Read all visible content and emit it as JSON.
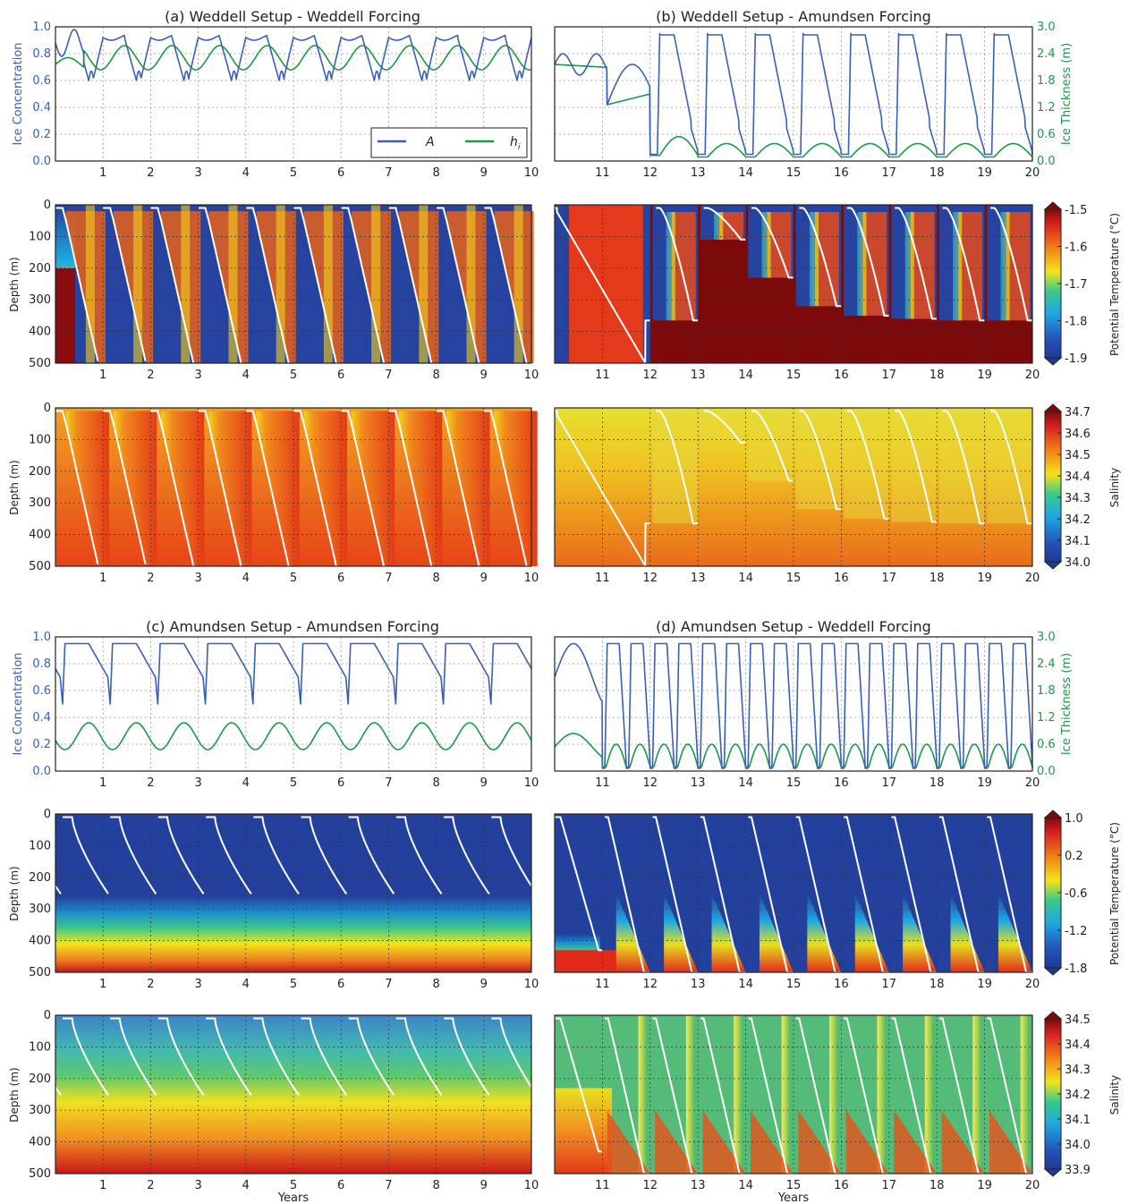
{
  "figure": {
    "xlabel": "Years"
  },
  "colorbars": {
    "temp_weddell": {
      "label": "Potential Temperature (°C)",
      "ticks": [
        "-1.9",
        "-1.8",
        "-1.7",
        "-1.6",
        "-1.5"
      ]
    },
    "sal_weddell": {
      "label": "Salinity",
      "ticks": [
        "34.0",
        "34.1",
        "34.2",
        "34.3",
        "34.4",
        "34.5",
        "34.6",
        "34.7"
      ]
    },
    "temp_amundsen": {
      "label": "Potential Temperature (°C)",
      "ticks": [
        "-1.8",
        "-1.2",
        "-0.6",
        "0.2",
        "1.0"
      ]
    },
    "sal_amundsen": {
      "label": "Salinity",
      "ticks": [
        "33.9",
        "34.0",
        "34.1",
        "34.2",
        "34.3",
        "34.4",
        "34.5"
      ]
    }
  },
  "chart_data": [
    {
      "id": "a",
      "type": "line",
      "title": "(a) Weddell Setup - Weddell Forcing",
      "xlim": [
        0,
        10
      ],
      "xticks": [
        "1",
        "2",
        "3",
        "4",
        "5",
        "6",
        "7",
        "8",
        "9",
        "10"
      ],
      "ylabel": "Ice Concentration",
      "ylim": [
        0,
        1.0
      ],
      "yticks": [
        "0.0",
        "0.2",
        "0.4",
        "0.6",
        "0.8",
        "1.0"
      ],
      "legend": {
        "placement": "lower-right",
        "entries": [
          "A",
          "h_i"
        ]
      },
      "series": [
        {
          "name": "A",
          "color": "#3a5fb4",
          "axis": "left",
          "pattern": "weddell_conc",
          "max": 0.92,
          "min": 0.58
        },
        {
          "name": "h_i",
          "color": "#1a9a45",
          "axis": "left",
          "pattern": "weddell_thick",
          "max": 0.86,
          "min": 0.68
        }
      ]
    },
    {
      "id": "b",
      "type": "line",
      "title": "(b) Weddell Setup - Amundsen Forcing",
      "xlim": [
        10,
        20
      ],
      "xticks": [
        "11",
        "12",
        "13",
        "14",
        "15",
        "16",
        "17",
        "18",
        "19",
        "20"
      ],
      "ylabel2": "Ice Thickness (m)",
      "ylim2": [
        0,
        3.0
      ],
      "yticks2": [
        "0.0",
        "0.6",
        "1.2",
        "1.8",
        "2.4",
        "3.0"
      ],
      "series": [
        {
          "name": "A",
          "color": "#3a5fb4",
          "axis": "right",
          "max_conc": 0.95
        },
        {
          "name": "h_i",
          "color": "#1a9a45",
          "axis": "right",
          "max_thick_m": 0.6
        }
      ]
    },
    {
      "id": "c",
      "type": "line",
      "title": "(c) Amundsen Setup - Amundsen Forcing",
      "xlim": [
        0,
        10
      ],
      "xticks": [
        "1",
        "2",
        "3",
        "4",
        "5",
        "6",
        "7",
        "8",
        "9",
        "10"
      ],
      "ylabel": "Ice Concentration",
      "ylim": [
        0,
        1.0
      ],
      "yticks": [
        "0.0",
        "0.2",
        "0.4",
        "0.6",
        "0.8",
        "1.0"
      ],
      "series": [
        {
          "name": "A",
          "color": "#3a5fb4",
          "axis": "left",
          "max": 0.95,
          "min": 0.5
        },
        {
          "name": "h_i",
          "color": "#1a9a45",
          "axis": "left",
          "max": 0.36,
          "min": 0.16
        }
      ]
    },
    {
      "id": "d",
      "type": "line",
      "title": "(d) Amundsen Setup - Weddell Forcing",
      "xlim": [
        10,
        20
      ],
      "xticks": [
        "11",
        "12",
        "13",
        "14",
        "15",
        "16",
        "17",
        "18",
        "19",
        "20"
      ],
      "ylabel2": "Ice Thickness (m)",
      "ylim2": [
        0,
        3.0
      ],
      "yticks2": [
        "0.0",
        "0.6",
        "1.2",
        "1.8",
        "2.4",
        "3.0"
      ],
      "series": [
        {
          "name": "A",
          "color": "#3a5fb4",
          "axis": "right",
          "max_conc": 0.95
        },
        {
          "name": "h_i",
          "color": "#1a9a45",
          "axis": "right",
          "max_thick_m": 0.6
        }
      ]
    },
    {
      "id": "aT",
      "type": "heatmap",
      "field": "temperature",
      "ylabel": "Depth (m)",
      "ylim": [
        500,
        0
      ],
      "yticks": [
        "0",
        "100",
        "200",
        "300",
        "400",
        "500"
      ],
      "xlim": [
        0,
        10
      ],
      "xticks": [
        "1",
        "2",
        "3",
        "4",
        "5",
        "6",
        "7",
        "8",
        "9",
        "10"
      ],
      "clim": [
        -1.9,
        -1.5
      ]
    },
    {
      "id": "bT",
      "type": "heatmap",
      "field": "temperature",
      "ylim": [
        500,
        0
      ],
      "xlim": [
        10,
        20
      ],
      "xticks": [
        "11",
        "12",
        "13",
        "14",
        "15",
        "16",
        "17",
        "18",
        "19",
        "20"
      ],
      "clim": [
        -1.9,
        -1.5
      ]
    },
    {
      "id": "aS",
      "type": "heatmap",
      "field": "salinity",
      "ylabel": "Depth (m)",
      "ylim": [
        500,
        0
      ],
      "yticks": [
        "0",
        "100",
        "200",
        "300",
        "400",
        "500"
      ],
      "xlim": [
        0,
        10
      ],
      "xticks": [
        "1",
        "2",
        "3",
        "4",
        "5",
        "6",
        "7",
        "8",
        "9",
        "10"
      ],
      "clim": [
        34.0,
        34.7
      ]
    },
    {
      "id": "bS",
      "type": "heatmap",
      "field": "salinity",
      "ylim": [
        500,
        0
      ],
      "xlim": [
        10,
        20
      ],
      "xticks": [
        "11",
        "12",
        "13",
        "14",
        "15",
        "16",
        "17",
        "18",
        "19",
        "20"
      ],
      "clim": [
        34.0,
        34.7
      ]
    },
    {
      "id": "cT",
      "type": "heatmap",
      "field": "temperature",
      "ylabel": "Depth (m)",
      "ylim": [
        500,
        0
      ],
      "yticks": [
        "0",
        "100",
        "200",
        "300",
        "400",
        "500"
      ],
      "xlim": [
        0,
        10
      ],
      "xticks": [
        "1",
        "2",
        "3",
        "4",
        "5",
        "6",
        "7",
        "8",
        "9",
        "10"
      ],
      "clim": [
        -1.8,
        1.0
      ]
    },
    {
      "id": "dT",
      "type": "heatmap",
      "field": "temperature",
      "ylim": [
        500,
        0
      ],
      "xlim": [
        10,
        20
      ],
      "xticks": [
        "11",
        "12",
        "13",
        "14",
        "15",
        "16",
        "17",
        "18",
        "19",
        "20"
      ],
      "clim": [
        -1.8,
        1.0
      ]
    },
    {
      "id": "cS",
      "type": "heatmap",
      "field": "salinity",
      "ylabel": "Depth (m)",
      "ylim": [
        500,
        0
      ],
      "yticks": [
        "0",
        "100",
        "200",
        "300",
        "400",
        "500"
      ],
      "xlim": [
        0,
        10
      ],
      "xticks": [
        "1",
        "2",
        "3",
        "4",
        "5",
        "6",
        "7",
        "8",
        "9",
        "10"
      ],
      "clim": [
        33.9,
        34.5
      ]
    },
    {
      "id": "dS",
      "type": "heatmap",
      "field": "salinity",
      "ylim": [
        500,
        0
      ],
      "xlim": [
        10,
        20
      ],
      "xticks": [
        "11",
        "12",
        "13",
        "14",
        "15",
        "16",
        "17",
        "18",
        "19",
        "20"
      ],
      "clim": [
        33.9,
        34.5
      ]
    }
  ],
  "colors": {
    "conc_axis": "#3a5fb4",
    "thick_axis": "#1a9a45",
    "mixed_layer": "#ffffff"
  }
}
